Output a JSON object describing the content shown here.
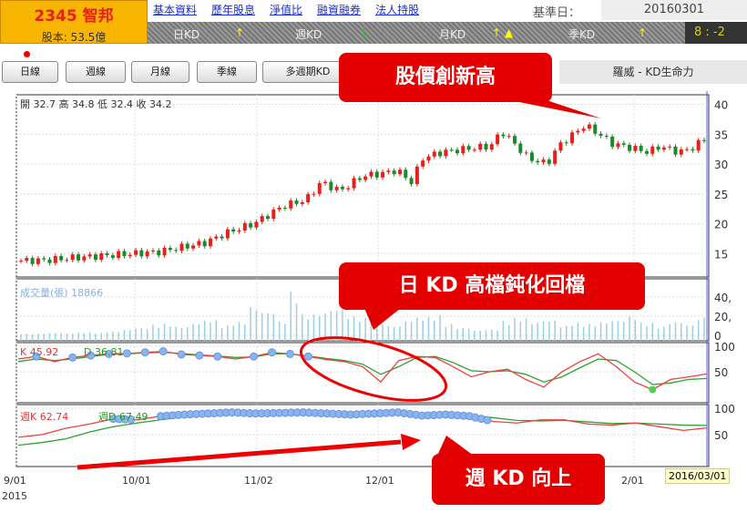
{
  "header": {
    "stock_title": "2345 智邦",
    "capital": "股本: 53.5億",
    "links": [
      "基本資料",
      "歷年股息",
      "淨值比",
      "融資融券",
      "法人持股"
    ],
    "base_date_label": "基準日：",
    "base_date": "20160301",
    "kd_status": [
      {
        "label": "日KD",
        "arrow": "↑"
      },
      {
        "label": "週KD",
        "arrow": "↓"
      },
      {
        "label": "月KD",
        "arrow": "↑ ▲"
      },
      {
        "label": "季KD",
        "arrow": "↑"
      }
    ],
    "score": "8 : -2"
  },
  "toolbar": {
    "buttons": [
      "日線",
      "週線",
      "月線",
      "季線",
      "多週期KD"
    ],
    "title": "羅威 - KD生命力"
  },
  "annotations": {
    "callout1": "股價創新高",
    "callout2": "日 KD 高檔鈍化回檔",
    "callout3": "週 KD 向上"
  },
  "colors": {
    "up": "#e8201a",
    "down": "#1a8a2a",
    "k_line": "#f04040",
    "d_line": "#30a030",
    "volume": "#9ccfe0",
    "marker": "#8ab4ee"
  },
  "chart_data": {
    "type": "line",
    "x_ticks": [
      "9/01",
      "10/01",
      "11/02",
      "12/01",
      "2/01"
    ],
    "x_year": "2015",
    "tooltip_date": "2016/03/01",
    "price": {
      "legend": "開 32.7 高 34.8 低 32.4 收 34.2",
      "y_ticks": [
        15,
        20,
        25,
        30,
        35,
        40
      ],
      "ylim": [
        12,
        41
      ],
      "dates": [
        "2015-09-01",
        "2015-09-08",
        "2015-09-15",
        "2015-09-22",
        "2015-10-01",
        "2015-10-08",
        "2015-10-15",
        "2015-10-20",
        "2015-10-26",
        "2015-11-02",
        "2015-11-06",
        "2015-11-10",
        "2015-11-16",
        "2015-11-20",
        "2015-11-25",
        "2015-12-01",
        "2015-12-07",
        "2015-12-10",
        "2015-12-14",
        "2015-12-17",
        "2015-12-22",
        "2015-12-28",
        "2016-01-04",
        "2016-01-07",
        "2016-01-11",
        "2016-01-14",
        "2016-01-19",
        "2016-01-22",
        "2016-01-26",
        "2016-01-29",
        "2016-02-02",
        "2016-02-05",
        "2016-02-15",
        "2016-02-18",
        "2016-02-23",
        "2016-02-26",
        "2016-03-01"
      ],
      "close": [
        13.8,
        13.9,
        14.3,
        14.6,
        15.0,
        15.3,
        16.2,
        16.8,
        18.5,
        20.0,
        21.5,
        23.0,
        24.0,
        27.0,
        25.5,
        28.0,
        28.5,
        29.0,
        27.0,
        31.0,
        32.0,
        32.5,
        33.0,
        35.5,
        33.0,
        31.0,
        30.0,
        33.0,
        35.0,
        36.5,
        35.0,
        33.5,
        32.0,
        33.0,
        32.0,
        32.5,
        34.2
      ]
    },
    "volume": {
      "legend": "成交量(張) 18866",
      "y_ticks": [
        "0",
        "20,",
        "40,"
      ],
      "ylim": [
        0,
        55000
      ],
      "values": [
        1500,
        2000,
        2500,
        1800,
        3000,
        2500,
        4000,
        6000,
        8000,
        11000,
        12000,
        9000,
        13000,
        16000,
        10000,
        14000,
        30000,
        25000,
        15000,
        46000,
        22000,
        24000,
        28000,
        20000,
        18000,
        14000,
        10000,
        16000,
        19000,
        21000,
        12000,
        8000,
        5000,
        6000,
        15000,
        18000,
        14000,
        16000,
        10000,
        13000,
        12000,
        14000,
        16000,
        20000,
        13000,
        9000,
        14000,
        11000,
        18866
      ]
    },
    "daily_kd": {
      "k_label": "K 45.92",
      "d_label": "D 36.81",
      "y_ticks": [
        50,
        100
      ],
      "ylim": [
        0,
        100
      ],
      "k": [
        75,
        80,
        70,
        78,
        82,
        85,
        86,
        88,
        90,
        84,
        82,
        80,
        75,
        80,
        88,
        85,
        80,
        74,
        70,
        60,
        30,
        72,
        80,
        78,
        60,
        40,
        50,
        55,
        35,
        20,
        50,
        70,
        85,
        60,
        30,
        15,
        35,
        40,
        45.92
      ],
      "d": [
        70,
        75,
        72,
        75,
        80,
        84,
        85,
        87,
        88,
        86,
        83,
        81,
        78,
        79,
        85,
        85,
        81,
        76,
        72,
        65,
        45,
        60,
        78,
        80,
        68,
        52,
        50,
        52,
        45,
        30,
        40,
        58,
        75,
        72,
        50,
        25,
        28,
        35,
        36.81
      ]
    },
    "weekly_kd": {
      "k_label": "週K 62.74",
      "d_label": "週D 67.49",
      "y_ticks": [
        50,
        100
      ],
      "ylim": [
        0,
        100
      ],
      "k": [
        45,
        50,
        62,
        70,
        80,
        78,
        85,
        88,
        90,
        92,
        90,
        91,
        92,
        90,
        88,
        90,
        92,
        86,
        88,
        85,
        75,
        72,
        78,
        78,
        70,
        68,
        72,
        65,
        58,
        62.74
      ],
      "d": [
        30,
        35,
        42,
        55,
        65,
        72,
        78,
        84,
        88,
        90,
        90,
        90,
        91,
        90,
        89,
        89,
        90,
        88,
        88,
        87,
        82,
        77,
        76,
        77,
        74,
        71,
        72,
        70,
        68,
        67.49
      ]
    }
  }
}
